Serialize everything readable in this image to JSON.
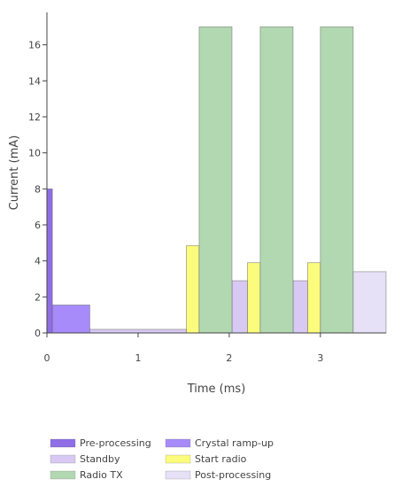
{
  "chart_data": {
    "type": "bar",
    "xlabel": "Time (ms)",
    "ylabel": "Current (mA)",
    "xlim": [
      0,
      3.72
    ],
    "ylim": [
      0,
      17.8
    ],
    "x_ticks": [
      0,
      1,
      2,
      3
    ],
    "y_ticks": [
      0,
      2,
      4,
      6,
      8,
      10,
      12,
      14,
      16
    ],
    "grid": false,
    "legend_position": "bottom",
    "series": [
      {
        "name": "Pre-processing",
        "color": "#8f6ee6",
        "segments": [
          {
            "x0": 0.0,
            "x1": 0.06,
            "y": 8.0
          }
        ]
      },
      {
        "name": "Crystal ramp-up",
        "color": "#a78bfa",
        "segments": [
          {
            "x0": 0.06,
            "x1": 0.47,
            "y": 1.55
          }
        ]
      },
      {
        "name": "Standby",
        "color": "#d7c9f3",
        "segments": [
          {
            "x0": 0.47,
            "x1": 1.53,
            "y": 0.2
          },
          {
            "x0": 2.03,
            "x1": 2.2,
            "y": 2.9
          },
          {
            "x0": 2.7,
            "x1": 2.86,
            "y": 2.9
          }
        ]
      },
      {
        "name": "Start radio",
        "color": "#fcfc7c",
        "segments": [
          {
            "x0": 1.53,
            "x1": 1.67,
            "y": 4.85
          },
          {
            "x0": 2.2,
            "x1": 2.34,
            "y": 3.9
          },
          {
            "x0": 2.86,
            "x1": 3.0,
            "y": 3.9
          }
        ]
      },
      {
        "name": "Radio TX",
        "color": "#b2d8b2",
        "segments": [
          {
            "x0": 1.67,
            "x1": 2.03,
            "y": 17.0
          },
          {
            "x0": 2.34,
            "x1": 2.7,
            "y": 17.0
          },
          {
            "x0": 3.0,
            "x1": 3.36,
            "y": 17.0
          }
        ]
      },
      {
        "name": "Post-processing",
        "color": "#e6e1f7",
        "segments": [
          {
            "x0": 3.36,
            "x1": 3.72,
            "y": 3.4
          }
        ]
      }
    ]
  }
}
